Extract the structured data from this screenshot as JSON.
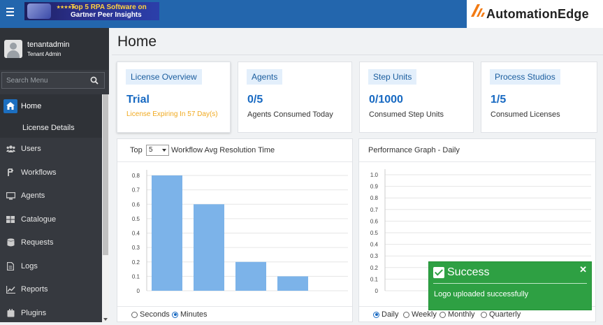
{
  "header": {
    "banner_line1": "Top 5 RPA Software on",
    "banner_line2": "Gartner Peer Insights",
    "brand": "AutomationEdge",
    "brand_color": "#f27a12"
  },
  "user": {
    "name": "tenantadmin",
    "role": "Tenant Admin"
  },
  "search": {
    "placeholder": "Search Menu"
  },
  "menu": [
    {
      "label": "Home",
      "icon": "home-icon",
      "active": true
    },
    {
      "label": "License Details",
      "sub": true
    },
    {
      "label": "Users",
      "icon": "users-icon"
    },
    {
      "label": "Workflows",
      "icon": "workflows-icon"
    },
    {
      "label": "Agents",
      "icon": "monitor-icon"
    },
    {
      "label": "Catalogue",
      "icon": "catalogue-icon"
    },
    {
      "label": "Requests",
      "icon": "requests-icon"
    },
    {
      "label": "Logs",
      "icon": "logs-icon"
    },
    {
      "label": "Reports",
      "icon": "reports-icon"
    },
    {
      "label": "Plugins",
      "icon": "plugins-icon"
    }
  ],
  "page": {
    "title": "Home"
  },
  "cards": [
    {
      "header": "License Overview",
      "value": "Trial",
      "sub": "License Expiring In 57 Day(s)",
      "sub_style": "warning"
    },
    {
      "header": "Agents",
      "value": "0/5",
      "sub": "Agents Consumed Today"
    },
    {
      "header": "Step Units",
      "value": "0/1000",
      "sub": "Consumed Step Units"
    },
    {
      "header": "Process Studios",
      "value": "1/5",
      "sub": "Consumed Licenses"
    }
  ],
  "workflow_panel": {
    "prefix": "Top",
    "top_value": "5",
    "title": "Workflow Avg Resolution Time",
    "radios": [
      {
        "label": "Seconds",
        "checked": false
      },
      {
        "label": "Minutes",
        "checked": true
      }
    ]
  },
  "performance_panel": {
    "title": "Performance Graph - Daily",
    "radios": [
      {
        "label": "Daily",
        "checked": true
      },
      {
        "label": "Weekly",
        "checked": false
      },
      {
        "label": "Monthly",
        "checked": false
      },
      {
        "label": "Quarterly",
        "checked": false
      }
    ]
  },
  "toast": {
    "title": "Success",
    "message": "Logo uploaded successfully",
    "color": "#2ea043"
  },
  "chart_data": [
    {
      "type": "bar",
      "values": [
        0.8,
        0.6,
        0.2,
        0.1
      ],
      "ylim": [
        0,
        0.8
      ],
      "yticks": [
        "0",
        "0.1",
        "0.2",
        "0.3",
        "0.4",
        "0.5",
        "0.6",
        "0.7",
        "0.8"
      ],
      "bar_color": "#7cb3e9",
      "grid": true
    },
    {
      "type": "line",
      "values": [],
      "ylim": [
        0,
        1.0
      ],
      "yticks": [
        "0",
        "0.1",
        "0.2",
        "0.3",
        "0.4",
        "0.5",
        "0.6",
        "0.7",
        "0.8",
        "0.9",
        "1.0"
      ],
      "grid": true
    }
  ]
}
